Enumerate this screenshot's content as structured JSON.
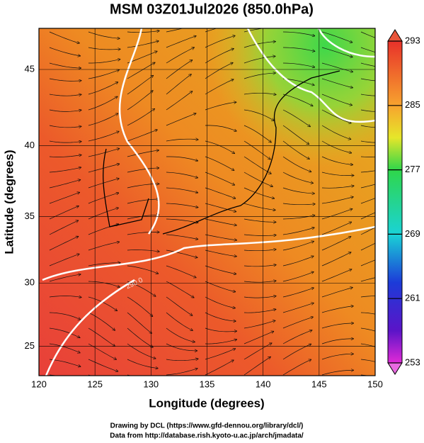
{
  "title": "MSM 03Z01Jul2026 (850.0hPa)",
  "x_axis": {
    "label": "Longitude (degrees)",
    "lim": [
      120,
      150
    ],
    "ticks": [
      120,
      125,
      130,
      135,
      140,
      145,
      150
    ]
  },
  "y_axis": {
    "label": "Latitude  (degrees)",
    "ticks": [
      25,
      30,
      35,
      40,
      45
    ]
  },
  "colorbar": {
    "lim": [
      253,
      293
    ],
    "ticks": [
      293,
      285,
      277,
      269,
      261,
      253
    ]
  },
  "contour_label": "290.0",
  "credits": [
    "Drawing by DCL (https://www.gfd-dennou.org/library/dcl/)",
    "Data from http://database.rish.kyoto-u.ac.jp/arch/jmadata/"
  ]
}
